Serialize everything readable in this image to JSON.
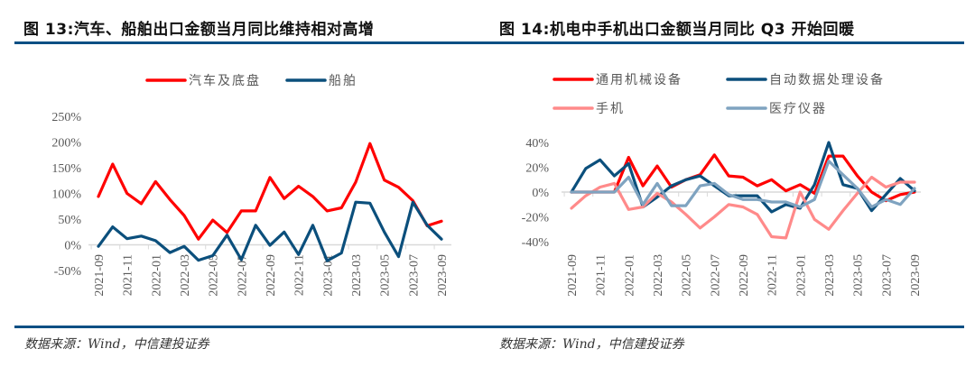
{
  "left": {
    "title": "图 13:汽车、船舶出口金额当月同比维持相对高增",
    "source": "数据来源：Wind，中信建投证券"
  },
  "right": {
    "title": "图 14:机电中手机出口金额当月同比 Q3 开始回暖",
    "source": "数据来源：Wind，中信建投证券"
  },
  "colors": {
    "rule": "#0b4f84",
    "red": "#ff0000",
    "navy": "#0b4f7c",
    "pink": "#ff8a8a",
    "steel": "#7fa3c0"
  },
  "chart_data": [
    {
      "type": "line",
      "title": "图 13:汽车、船舶出口金额当月同比维持相对高增",
      "xlabel": "",
      "ylabel": "",
      "ylim": [
        -0.5,
        2.5
      ],
      "yticks": [
        -0.5,
        0,
        0.5,
        1.0,
        1.5,
        2.0,
        2.5
      ],
      "ytick_labels": [
        "-50%",
        "0%",
        "50%",
        "100%",
        "150%",
        "200%",
        "250%"
      ],
      "x": [
        "2021-09",
        "2021-10",
        "2021-11",
        "2021-12",
        "2022-01",
        "2022-02",
        "2022-03",
        "2022-04",
        "2022-05",
        "2022-06",
        "2022-07",
        "2022-08",
        "2022-09",
        "2022-10",
        "2022-11",
        "2022-12",
        "2023-01",
        "2023-02",
        "2023-03",
        "2023-04",
        "2023-05",
        "2023-06",
        "2023-07",
        "2023-08",
        "2023-09"
      ],
      "xtick_labels": [
        "2021-09",
        "2021-11",
        "2022-01",
        "2022-03",
        "2022-05",
        "2022-07",
        "2022-09",
        "2022-11",
        "2023-01",
        "2023-03",
        "2023-05",
        "2023-07",
        "2023-09"
      ],
      "legend": "top-center",
      "grid": false,
      "series": [
        {
          "name": "汽车及底盘",
          "color": "#ff0000",
          "values": [
            0.94,
            1.57,
            1.0,
            0.8,
            1.23,
            0.88,
            0.57,
            0.11,
            0.48,
            0.24,
            0.66,
            0.66,
            1.31,
            0.9,
            1.14,
            0.94,
            0.66,
            0.72,
            1.22,
            1.97,
            1.26,
            1.12,
            0.86,
            0.37,
            0.46
          ]
        },
        {
          "name": "船舶",
          "color": "#0b4f7c",
          "values": [
            -0.03,
            0.35,
            0.12,
            0.17,
            0.08,
            -0.15,
            -0.03,
            -0.3,
            -0.21,
            0.19,
            -0.29,
            0.38,
            -0.01,
            0.25,
            -0.19,
            0.38,
            -0.31,
            -0.16,
            0.83,
            0.81,
            0.25,
            -0.23,
            0.83,
            0.38,
            0.11
          ]
        }
      ]
    },
    {
      "type": "line",
      "title": "图 14:机电中手机出口金额当月同比 Q3 开始回暖",
      "xlabel": "",
      "ylabel": "",
      "ylim": [
        -0.4,
        0.4
      ],
      "yticks": [
        -0.4,
        -0.2,
        0,
        0.2,
        0.4
      ],
      "ytick_labels": [
        "-40%",
        "-20%",
        "0%",
        "20%",
        "40%"
      ],
      "x": [
        "2021-09",
        "2021-10",
        "2021-11",
        "2021-12",
        "2022-01",
        "2022-02",
        "2022-03",
        "2022-04",
        "2022-05",
        "2022-06",
        "2022-07",
        "2022-08",
        "2022-09",
        "2022-10",
        "2022-11",
        "2022-12",
        "2023-01",
        "2023-02",
        "2023-03",
        "2023-04",
        "2023-05",
        "2023-06",
        "2023-07",
        "2023-08",
        "2023-09"
      ],
      "xtick_labels": [
        "2021-09",
        "2021-11",
        "2022-01",
        "2022-03",
        "2022-05",
        "2022-07",
        "2022-09",
        "2022-11",
        "2023-01",
        "2023-03",
        "2023-05",
        "2023-07",
        "2023-09"
      ],
      "legend": "top",
      "grid": false,
      "series": [
        {
          "name": "通用机械设备",
          "color": "#ff0000",
          "values": [
            0.0,
            0.0,
            0.0,
            0.0,
            0.28,
            0.05,
            0.21,
            0.04,
            0.1,
            0.14,
            0.3,
            0.13,
            0.12,
            0.05,
            0.1,
            0.01,
            0.06,
            -0.01,
            0.29,
            0.29,
            0.13,
            0.0,
            -0.07,
            -0.02,
            0.0
          ]
        },
        {
          "name": "自动数据处理设备",
          "color": "#0b4f7c",
          "values": [
            0.0,
            0.19,
            0.26,
            0.13,
            0.23,
            -0.12,
            -0.04,
            0.05,
            0.1,
            0.13,
            0.05,
            -0.03,
            -0.03,
            -0.03,
            -0.16,
            -0.1,
            -0.13,
            0.06,
            0.4,
            0.06,
            0.03,
            -0.15,
            -0.02,
            0.11,
            0.01
          ]
        },
        {
          "name": "手机",
          "color": "#ff8a8a",
          "values": [
            -0.13,
            -0.03,
            0.04,
            0.07,
            -0.14,
            -0.12,
            -0.01,
            -0.08,
            -0.18,
            -0.29,
            -0.2,
            -0.1,
            -0.12,
            -0.18,
            -0.36,
            -0.37,
            0.0,
            -0.22,
            -0.3,
            -0.15,
            -0.01,
            0.12,
            0.04,
            0.08,
            0.08
          ]
        },
        {
          "name": "医疗仪器",
          "color": "#7fa3c0",
          "values": [
            0.0,
            0.0,
            0.0,
            0.0,
            0.12,
            -0.1,
            0.07,
            -0.11,
            -0.11,
            0.05,
            0.07,
            -0.02,
            -0.06,
            -0.06,
            -0.08,
            -0.08,
            -0.12,
            -0.06,
            0.25,
            0.14,
            0.03,
            -0.12,
            -0.06,
            -0.1,
            0.03
          ]
        }
      ]
    }
  ]
}
